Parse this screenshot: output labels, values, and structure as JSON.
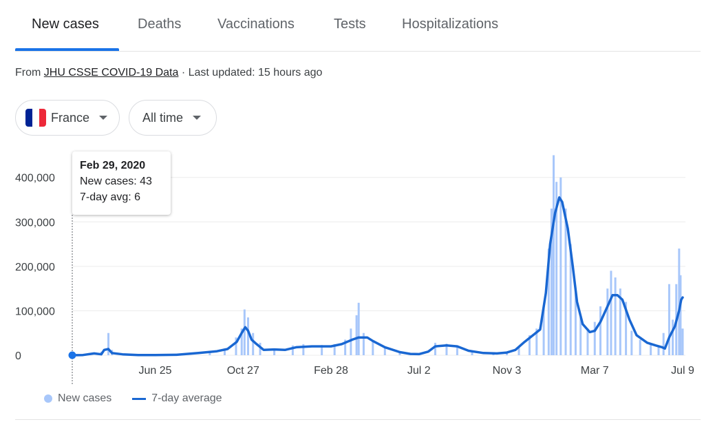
{
  "tabs": [
    {
      "label": "New cases",
      "active": true
    },
    {
      "label": "Deaths",
      "active": false
    },
    {
      "label": "Vaccinations",
      "active": false
    },
    {
      "label": "Tests",
      "active": false
    },
    {
      "label": "Hospitalizations",
      "active": false
    }
  ],
  "source": {
    "prefix": "From ",
    "link_text": "JHU CSSE COVID-19 Data",
    "suffix": " · Last updated: 15 hours ago"
  },
  "filters": {
    "country": "France",
    "range": "All time"
  },
  "tooltip": {
    "date": "Feb 29, 2020",
    "new_cases": "New cases: 43",
    "avg": "7-day avg: 6"
  },
  "legend": {
    "bars": "New cases",
    "line": "7-day average"
  },
  "colors": {
    "accent": "#1a73e8",
    "bar": "#a8c7fa",
    "line": "#1967d2"
  },
  "chart_data": {
    "type": "bar",
    "title": "",
    "xlabel": "",
    "ylabel": "",
    "ylim": [
      0,
      460000
    ],
    "y_ticks": [
      {
        "value": 0,
        "label": "0"
      },
      {
        "value": 100000,
        "label": "100,000"
      },
      {
        "value": 200000,
        "label": "200,000"
      },
      {
        "value": 300000,
        "label": "300,000"
      },
      {
        "value": 400000,
        "label": "400,000"
      }
    ],
    "x_range": [
      "2020-02-29",
      "2022-07-09"
    ],
    "x_ticks": [
      {
        "date": "2020-06-25",
        "label": "Jun 25"
      },
      {
        "date": "2020-10-27",
        "label": "Oct 27"
      },
      {
        "date": "2021-02-28",
        "label": "Feb 28"
      },
      {
        "date": "2021-07-02",
        "label": "Jul 2"
      },
      {
        "date": "2021-11-03",
        "label": "Nov 3"
      },
      {
        "date": "2022-03-07",
        "label": "Mar 7"
      },
      {
        "date": "2022-07-09",
        "label": "Jul 9"
      }
    ],
    "series": [
      {
        "name": "New cases",
        "kind": "bars",
        "points": [
          [
            "2020-02-29",
            43
          ],
          [
            "2020-03-25",
            4500
          ],
          [
            "2020-04-10",
            8000
          ],
          [
            "2020-04-20",
            50000
          ],
          [
            "2020-04-25",
            12000
          ],
          [
            "2020-05-15",
            3000
          ],
          [
            "2020-06-25",
            500
          ],
          [
            "2020-08-01",
            1500
          ],
          [
            "2020-09-10",
            9000
          ],
          [
            "2020-10-01",
            15000
          ],
          [
            "2020-10-17",
            40000
          ],
          [
            "2020-10-25",
            60000
          ],
          [
            "2020-10-29",
            103000
          ],
          [
            "2020-11-03",
            85000
          ],
          [
            "2020-11-10",
            50000
          ],
          [
            "2020-11-20",
            28000
          ],
          [
            "2020-12-10",
            15000
          ],
          [
            "2021-01-05",
            22000
          ],
          [
            "2021-01-20",
            25000
          ],
          [
            "2021-02-15",
            23000
          ],
          [
            "2021-03-05",
            25000
          ],
          [
            "2021-03-20",
            35000
          ],
          [
            "2021-03-28",
            60000
          ],
          [
            "2021-04-05",
            90000
          ],
          [
            "2021-04-08",
            118000
          ],
          [
            "2021-04-15",
            50000
          ],
          [
            "2021-04-28",
            32000
          ],
          [
            "2021-05-15",
            18000
          ],
          [
            "2021-06-05",
            8000
          ],
          [
            "2021-07-02",
            3000
          ],
          [
            "2021-07-25",
            28000
          ],
          [
            "2021-08-10",
            26000
          ],
          [
            "2021-08-25",
            22000
          ],
          [
            "2021-09-15",
            8000
          ],
          [
            "2021-10-15",
            5000
          ],
          [
            "2021-11-03",
            7000
          ],
          [
            "2021-11-20",
            18000
          ],
          [
            "2021-12-05",
            45000
          ],
          [
            "2021-12-15",
            60000
          ],
          [
            "2021-12-25",
            110000
          ],
          [
            "2022-01-01",
            240000
          ],
          [
            "2022-01-05",
            330000
          ],
          [
            "2022-01-08",
            450000
          ],
          [
            "2022-01-12",
            390000
          ],
          [
            "2022-01-18",
            400000
          ],
          [
            "2022-01-25",
            330000
          ],
          [
            "2022-02-01",
            250000
          ],
          [
            "2022-02-08",
            150000
          ],
          [
            "2022-02-15",
            85000
          ],
          [
            "2022-02-25",
            60000
          ],
          [
            "2022-03-07",
            75000
          ],
          [
            "2022-03-15",
            110000
          ],
          [
            "2022-03-25",
            150000
          ],
          [
            "2022-03-30",
            190000
          ],
          [
            "2022-04-05",
            175000
          ],
          [
            "2022-04-12",
            150000
          ],
          [
            "2022-04-20",
            120000
          ],
          [
            "2022-04-28",
            55000
          ],
          [
            "2022-05-10",
            35000
          ],
          [
            "2022-05-25",
            25000
          ],
          [
            "2022-06-05",
            20000
          ],
          [
            "2022-06-12",
            50000
          ],
          [
            "2022-06-20",
            160000
          ],
          [
            "2022-06-25",
            80000
          ],
          [
            "2022-06-30",
            160000
          ],
          [
            "2022-07-04",
            240000
          ],
          [
            "2022-07-06",
            180000
          ],
          [
            "2022-07-09",
            60000
          ]
        ]
      },
      {
        "name": "7-day average",
        "kind": "line",
        "points": [
          [
            "2020-02-29",
            6
          ],
          [
            "2020-03-15",
            500
          ],
          [
            "2020-03-31",
            4000
          ],
          [
            "2020-04-10",
            2000
          ],
          [
            "2020-04-14",
            12000
          ],
          [
            "2020-04-20",
            14000
          ],
          [
            "2020-04-25",
            5000
          ],
          [
            "2020-05-10",
            2000
          ],
          [
            "2020-06-01",
            500
          ],
          [
            "2020-06-25",
            500
          ],
          [
            "2020-07-25",
            1000
          ],
          [
            "2020-08-25",
            5000
          ],
          [
            "2020-09-20",
            9000
          ],
          [
            "2020-10-05",
            14000
          ],
          [
            "2020-10-18",
            30000
          ],
          [
            "2020-10-25",
            50000
          ],
          [
            "2020-10-30",
            63000
          ],
          [
            "2020-11-03",
            55000
          ],
          [
            "2020-11-08",
            35000
          ],
          [
            "2020-11-15",
            25000
          ],
          [
            "2020-11-25",
            12000
          ],
          [
            "2020-12-10",
            13000
          ],
          [
            "2020-12-25",
            12000
          ],
          [
            "2021-01-10",
            18000
          ],
          [
            "2021-02-01",
            20000
          ],
          [
            "2021-02-28",
            20000
          ],
          [
            "2021-03-15",
            25000
          ],
          [
            "2021-03-30",
            35000
          ],
          [
            "2021-04-08",
            40000
          ],
          [
            "2021-04-20",
            40000
          ],
          [
            "2021-04-28",
            32000
          ],
          [
            "2021-05-15",
            18000
          ],
          [
            "2021-06-05",
            7000
          ],
          [
            "2021-06-20",
            3000
          ],
          [
            "2021-07-02",
            2500
          ],
          [
            "2021-07-15",
            8000
          ],
          [
            "2021-07-25",
            20000
          ],
          [
            "2021-08-10",
            22000
          ],
          [
            "2021-08-25",
            20000
          ],
          [
            "2021-09-10",
            10000
          ],
          [
            "2021-10-01",
            5000
          ],
          [
            "2021-10-20",
            4000
          ],
          [
            "2021-11-03",
            6000
          ],
          [
            "2021-11-15",
            12000
          ],
          [
            "2021-11-28",
            30000
          ],
          [
            "2021-12-10",
            45000
          ],
          [
            "2021-12-20",
            58000
          ],
          [
            "2021-12-28",
            140000
          ],
          [
            "2022-01-03",
            250000
          ],
          [
            "2022-01-10",
            320000
          ],
          [
            "2022-01-16",
            355000
          ],
          [
            "2022-01-20",
            345000
          ],
          [
            "2022-01-28",
            285000
          ],
          [
            "2022-02-04",
            200000
          ],
          [
            "2022-02-10",
            120000
          ],
          [
            "2022-02-18",
            70000
          ],
          [
            "2022-02-28",
            52000
          ],
          [
            "2022-03-07",
            55000
          ],
          [
            "2022-03-15",
            75000
          ],
          [
            "2022-03-25",
            110000
          ],
          [
            "2022-04-01",
            135000
          ],
          [
            "2022-04-08",
            135000
          ],
          [
            "2022-04-15",
            125000
          ],
          [
            "2022-04-25",
            80000
          ],
          [
            "2022-05-05",
            45000
          ],
          [
            "2022-05-20",
            28000
          ],
          [
            "2022-06-01",
            22000
          ],
          [
            "2022-06-10",
            18000
          ],
          [
            "2022-06-14",
            15000
          ],
          [
            "2022-06-20",
            40000
          ],
          [
            "2022-06-28",
            65000
          ],
          [
            "2022-07-04",
            100000
          ],
          [
            "2022-07-07",
            125000
          ],
          [
            "2022-07-09",
            130000
          ]
        ]
      }
    ],
    "highlight": {
      "date": "2020-02-29",
      "value": 6
    },
    "grid": true,
    "legend": "bottom-left"
  }
}
